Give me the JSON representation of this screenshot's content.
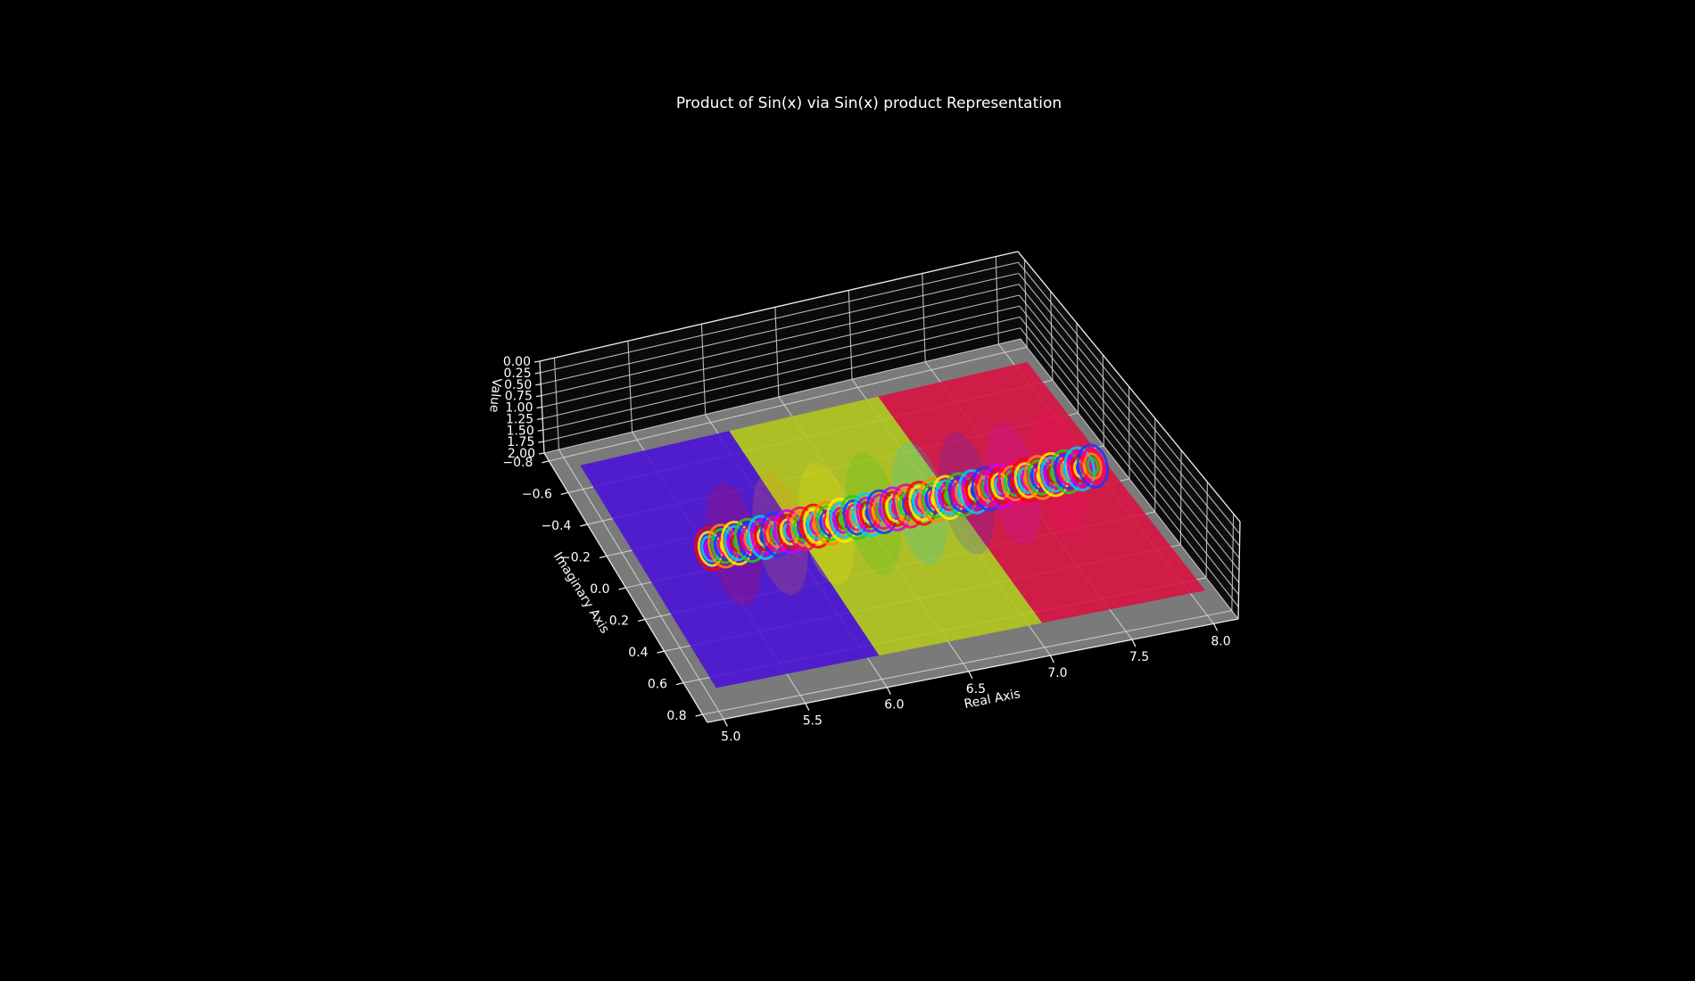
{
  "chart_data": {
    "type": "surface3d",
    "title": "Product of Sin(x) via Sin(x) product Representation",
    "xlabel": "Real Axis",
    "ylabel": "Imaginary Axis",
    "zlabel": "Value",
    "xlim": [
      4.9,
      8.15
    ],
    "ylim": [
      -0.85,
      0.85
    ],
    "zlim": [
      0,
      2
    ],
    "x_ticks": [
      "5.0",
      "5.5",
      "6.0",
      "6.5",
      "7.0",
      "7.5",
      "8.0"
    ],
    "y_ticks": [
      "-0.8",
      "-0.6",
      "-0.4",
      "-0.2",
      "0.0",
      "0.2",
      "0.4",
      "0.6",
      "0.8"
    ],
    "z_ticks": [
      "0.00",
      "0.25",
      "0.50",
      "0.75",
      "1.00",
      "1.25",
      "1.50",
      "1.75",
      "2.00"
    ],
    "bands": [
      {
        "x_range": [
          5.0,
          6.0
        ],
        "color": "#4a10d8"
      },
      {
        "x_range": [
          6.0,
          7.0
        ],
        "color": "#b4c81a"
      },
      {
        "x_range": [
          7.0,
          8.0
        ],
        "color": "#dc1040"
      }
    ],
    "colormap": "hsv"
  },
  "colors": {
    "background": "#000000",
    "pane": "#7a7a7a",
    "grid": "#d6d6d6",
    "text": "#ffffff"
  }
}
